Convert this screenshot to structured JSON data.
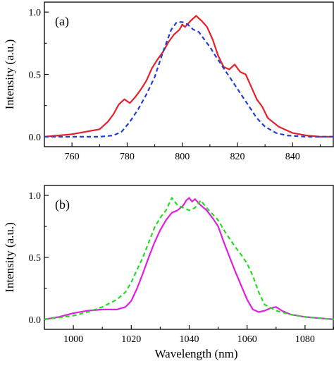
{
  "figure": {
    "xlabel": "Wavelength (nm)"
  },
  "chart_data": [
    {
      "type": "line",
      "panel_label": "(a)",
      "xlabel": "",
      "ylabel": "Intensity (a.u.)",
      "xlim": [
        750,
        855
      ],
      "ylim": [
        -0.08,
        1.08
      ],
      "xticks": [
        760,
        780,
        800,
        820,
        840
      ],
      "yticks": [
        0.0,
        0.5,
        1.0
      ],
      "ytick_labels": [
        "0.0",
        "0.5",
        "1.0"
      ],
      "grid": false,
      "legend": "none",
      "series": [
        {
          "color": "#e8202a",
          "style": "solid",
          "x": [
            750,
            755,
            760,
            765,
            770,
            773,
            775,
            777,
            779,
            781,
            783,
            785,
            787,
            789,
            791,
            793,
            795,
            797,
            799,
            800,
            801,
            803,
            805,
            807,
            809,
            811,
            813,
            815,
            817,
            819,
            821,
            823,
            825,
            827,
            829,
            831,
            835,
            840,
            845,
            850,
            855
          ],
          "y": [
            0.0,
            0.01,
            0.02,
            0.04,
            0.06,
            0.12,
            0.18,
            0.26,
            0.3,
            0.27,
            0.32,
            0.38,
            0.45,
            0.55,
            0.62,
            0.68,
            0.76,
            0.82,
            0.86,
            0.9,
            0.88,
            0.93,
            0.97,
            0.93,
            0.88,
            0.78,
            0.65,
            0.56,
            0.54,
            0.58,
            0.52,
            0.5,
            0.4,
            0.3,
            0.24,
            0.15,
            0.08,
            0.03,
            0.01,
            0.0,
            0.0
          ]
        },
        {
          "color": "#1f3fd6",
          "style": "dashed",
          "x": [
            750,
            760,
            770,
            775,
            778,
            781,
            784,
            787,
            790,
            793,
            796,
            798,
            800,
            802,
            804,
            806,
            808,
            810,
            812,
            815,
            818,
            821,
            824,
            827,
            830,
            834,
            838,
            845,
            855
          ],
          "y": [
            0.0,
            0.0,
            0.0,
            0.01,
            0.04,
            0.12,
            0.22,
            0.34,
            0.48,
            0.68,
            0.86,
            0.92,
            0.92,
            0.9,
            0.86,
            0.84,
            0.78,
            0.72,
            0.65,
            0.55,
            0.45,
            0.35,
            0.25,
            0.15,
            0.08,
            0.03,
            0.01,
            0.0,
            0.0
          ]
        }
      ]
    },
    {
      "type": "line",
      "panel_label": "(b)",
      "xlabel": "Wavelength (nm)",
      "ylabel": "Intensity (a.u.)",
      "xlim": [
        990,
        1090
      ],
      "ylim": [
        -0.08,
        1.08
      ],
      "xticks": [
        1000,
        1020,
        1040,
        1060,
        1080
      ],
      "yticks": [
        0.0,
        0.5,
        1.0
      ],
      "ytick_labels": [
        "0.0",
        "0.5",
        "1.0"
      ],
      "grid": false,
      "legend": "none",
      "series": [
        {
          "color": "#e020e0",
          "style": "solid",
          "x": [
            990,
            995,
            1000,
            1005,
            1010,
            1015,
            1018,
            1020,
            1022,
            1024,
            1026,
            1028,
            1030,
            1032,
            1034,
            1036,
            1038,
            1039,
            1040,
            1041,
            1042,
            1044,
            1046,
            1048,
            1050,
            1052,
            1054,
            1056,
            1058,
            1060,
            1062,
            1064,
            1066,
            1068,
            1070,
            1072,
            1075,
            1080,
            1085,
            1090
          ],
          "y": [
            0.0,
            0.02,
            0.05,
            0.07,
            0.08,
            0.08,
            0.1,
            0.15,
            0.25,
            0.37,
            0.5,
            0.62,
            0.72,
            0.8,
            0.86,
            0.88,
            0.92,
            0.96,
            0.98,
            0.95,
            0.97,
            0.92,
            0.88,
            0.82,
            0.75,
            0.62,
            0.5,
            0.38,
            0.27,
            0.16,
            0.08,
            0.06,
            0.07,
            0.09,
            0.1,
            0.07,
            0.04,
            0.02,
            0.01,
            0.0
          ]
        },
        {
          "color": "#22dd22",
          "style": "dashed",
          "x": [
            990,
            1000,
            1005,
            1010,
            1015,
            1018,
            1020,
            1022,
            1024,
            1026,
            1028,
            1030,
            1032,
            1034,
            1036,
            1038,
            1040,
            1042,
            1044,
            1046,
            1048,
            1050,
            1052,
            1054,
            1056,
            1058,
            1060,
            1062,
            1064,
            1066,
            1070,
            1075,
            1080,
            1085,
            1090
          ],
          "y": [
            0.0,
            0.03,
            0.06,
            0.1,
            0.16,
            0.22,
            0.3,
            0.4,
            0.5,
            0.62,
            0.74,
            0.82,
            0.88,
            0.98,
            0.92,
            0.9,
            0.88,
            0.9,
            0.96,
            0.9,
            0.85,
            0.8,
            0.72,
            0.65,
            0.58,
            0.52,
            0.45,
            0.35,
            0.22,
            0.12,
            0.07,
            0.04,
            0.02,
            0.01,
            0.0
          ]
        }
      ]
    }
  ]
}
